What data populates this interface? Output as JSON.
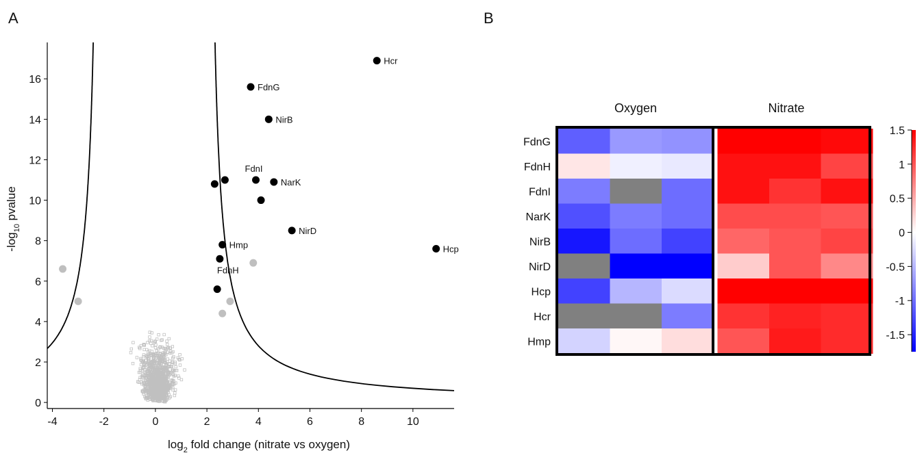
{
  "panels": {
    "a": "A",
    "b": "B"
  },
  "chart_data": [
    {
      "type": "scatter",
      "xlabel": "log2 fold change (nitrate vs oxygen)",
      "xlabel_parts": {
        "pre": "log",
        "sub": "2",
        "post": " fold change (nitrate vs oxygen)"
      },
      "ylabel": "-log10 pvalue",
      "ylabel_parts": {
        "pre": "-log",
        "sub": "10",
        "post": " pvalue"
      },
      "xlim": [
        -4.2,
        11.6
      ],
      "ylim": [
        -0.3,
        17.8
      ],
      "xticks": [
        -4,
        -2,
        0,
        2,
        4,
        6,
        8,
        10
      ],
      "yticks": [
        0,
        2,
        4,
        6,
        8,
        10,
        12,
        14,
        16
      ],
      "threshold_curve": {
        "asymptote_x": [
          -2.1,
          2.0
        ],
        "color": "#000000"
      },
      "highlighted_points": [
        {
          "label": "Hcr",
          "x": 8.6,
          "y": 16.9
        },
        {
          "label": "FdnG",
          "x": 3.7,
          "y": 15.6
        },
        {
          "label": "NirB",
          "x": 4.4,
          "y": 14.0
        },
        {
          "label": "",
          "x": 2.3,
          "y": 10.8
        },
        {
          "label": "",
          "x": 2.7,
          "y": 11.0
        },
        {
          "label": "FdnI",
          "x": 3.9,
          "y": 11.0
        },
        {
          "label": "NarK",
          "x": 4.6,
          "y": 10.9
        },
        {
          "label": "",
          "x": 4.1,
          "y": 10.0
        },
        {
          "label": "NirD",
          "x": 5.3,
          "y": 8.5
        },
        {
          "label": "Hcp",
          "x": 10.9,
          "y": 7.6
        },
        {
          "label": "Hmp",
          "x": 2.6,
          "y": 7.8
        },
        {
          "label": "FdnH",
          "x": 2.5,
          "y": 7.1
        },
        {
          "label": "",
          "x": 2.4,
          "y": 5.6
        }
      ],
      "significant_gray_points": [
        {
          "x": -3.6,
          "y": 6.6
        },
        {
          "x": -3.0,
          "y": 5.0
        },
        {
          "x": 3.8,
          "y": 6.9
        },
        {
          "x": 2.9,
          "y": 5.0
        },
        {
          "x": 2.6,
          "y": 4.4
        }
      ],
      "background_points": {
        "count": 1200,
        "x_range": [
          -2.2,
          2.4
        ],
        "y_range": [
          0,
          11
        ],
        "note_marker": "open square",
        "color": "#c0c0c0"
      },
      "colors": {
        "highlight": "#000000",
        "gray": "#bfbfbf"
      }
    },
    {
      "type": "heatmap",
      "column_groups": [
        "Oxygen",
        "Nitrate"
      ],
      "replicates_per_group": 3,
      "rows": [
        "FdnG",
        "FdnH",
        "FdnI",
        "NarK",
        "NirB",
        "NirD",
        "Hcp",
        "Hcr",
        "Hmp"
      ],
      "values": [
        [
          -1.1,
          -0.7,
          -0.75,
          1.5,
          1.5,
          1.45
        ],
        [
          0.15,
          -0.1,
          -0.15,
          1.4,
          1.4,
          1.1
        ],
        [
          -0.9,
          null,
          -1.0,
          1.4,
          1.2,
          1.4
        ],
        [
          -1.2,
          -0.9,
          -1.0,
          1.05,
          1.05,
          1.0
        ],
        [
          -1.6,
          -1.0,
          -1.3,
          0.9,
          1.0,
          1.1
        ],
        [
          null,
          -1.85,
          -1.9,
          0.3,
          1.0,
          0.7
        ],
        [
          -1.3,
          -0.5,
          -0.25,
          1.5,
          1.5,
          1.5
        ],
        [
          null,
          null,
          -0.9,
          1.2,
          1.3,
          1.25
        ],
        [
          -0.3,
          0.05,
          0.2,
          1.0,
          1.35,
          1.25
        ]
      ],
      "missing_color": "#808080",
      "colorbar": {
        "min": -1.75,
        "max": 1.5,
        "ticks": [
          "1.5",
          "1",
          "0.5",
          "0",
          "-0.5",
          "-1",
          "-1.5"
        ],
        "tick_values": [
          1.5,
          1,
          0.5,
          0,
          -0.5,
          -1,
          -1.5
        ]
      },
      "colors": {
        "high": "#ff0000",
        "mid": "#ffffff",
        "low": "#0000ff"
      }
    }
  ]
}
